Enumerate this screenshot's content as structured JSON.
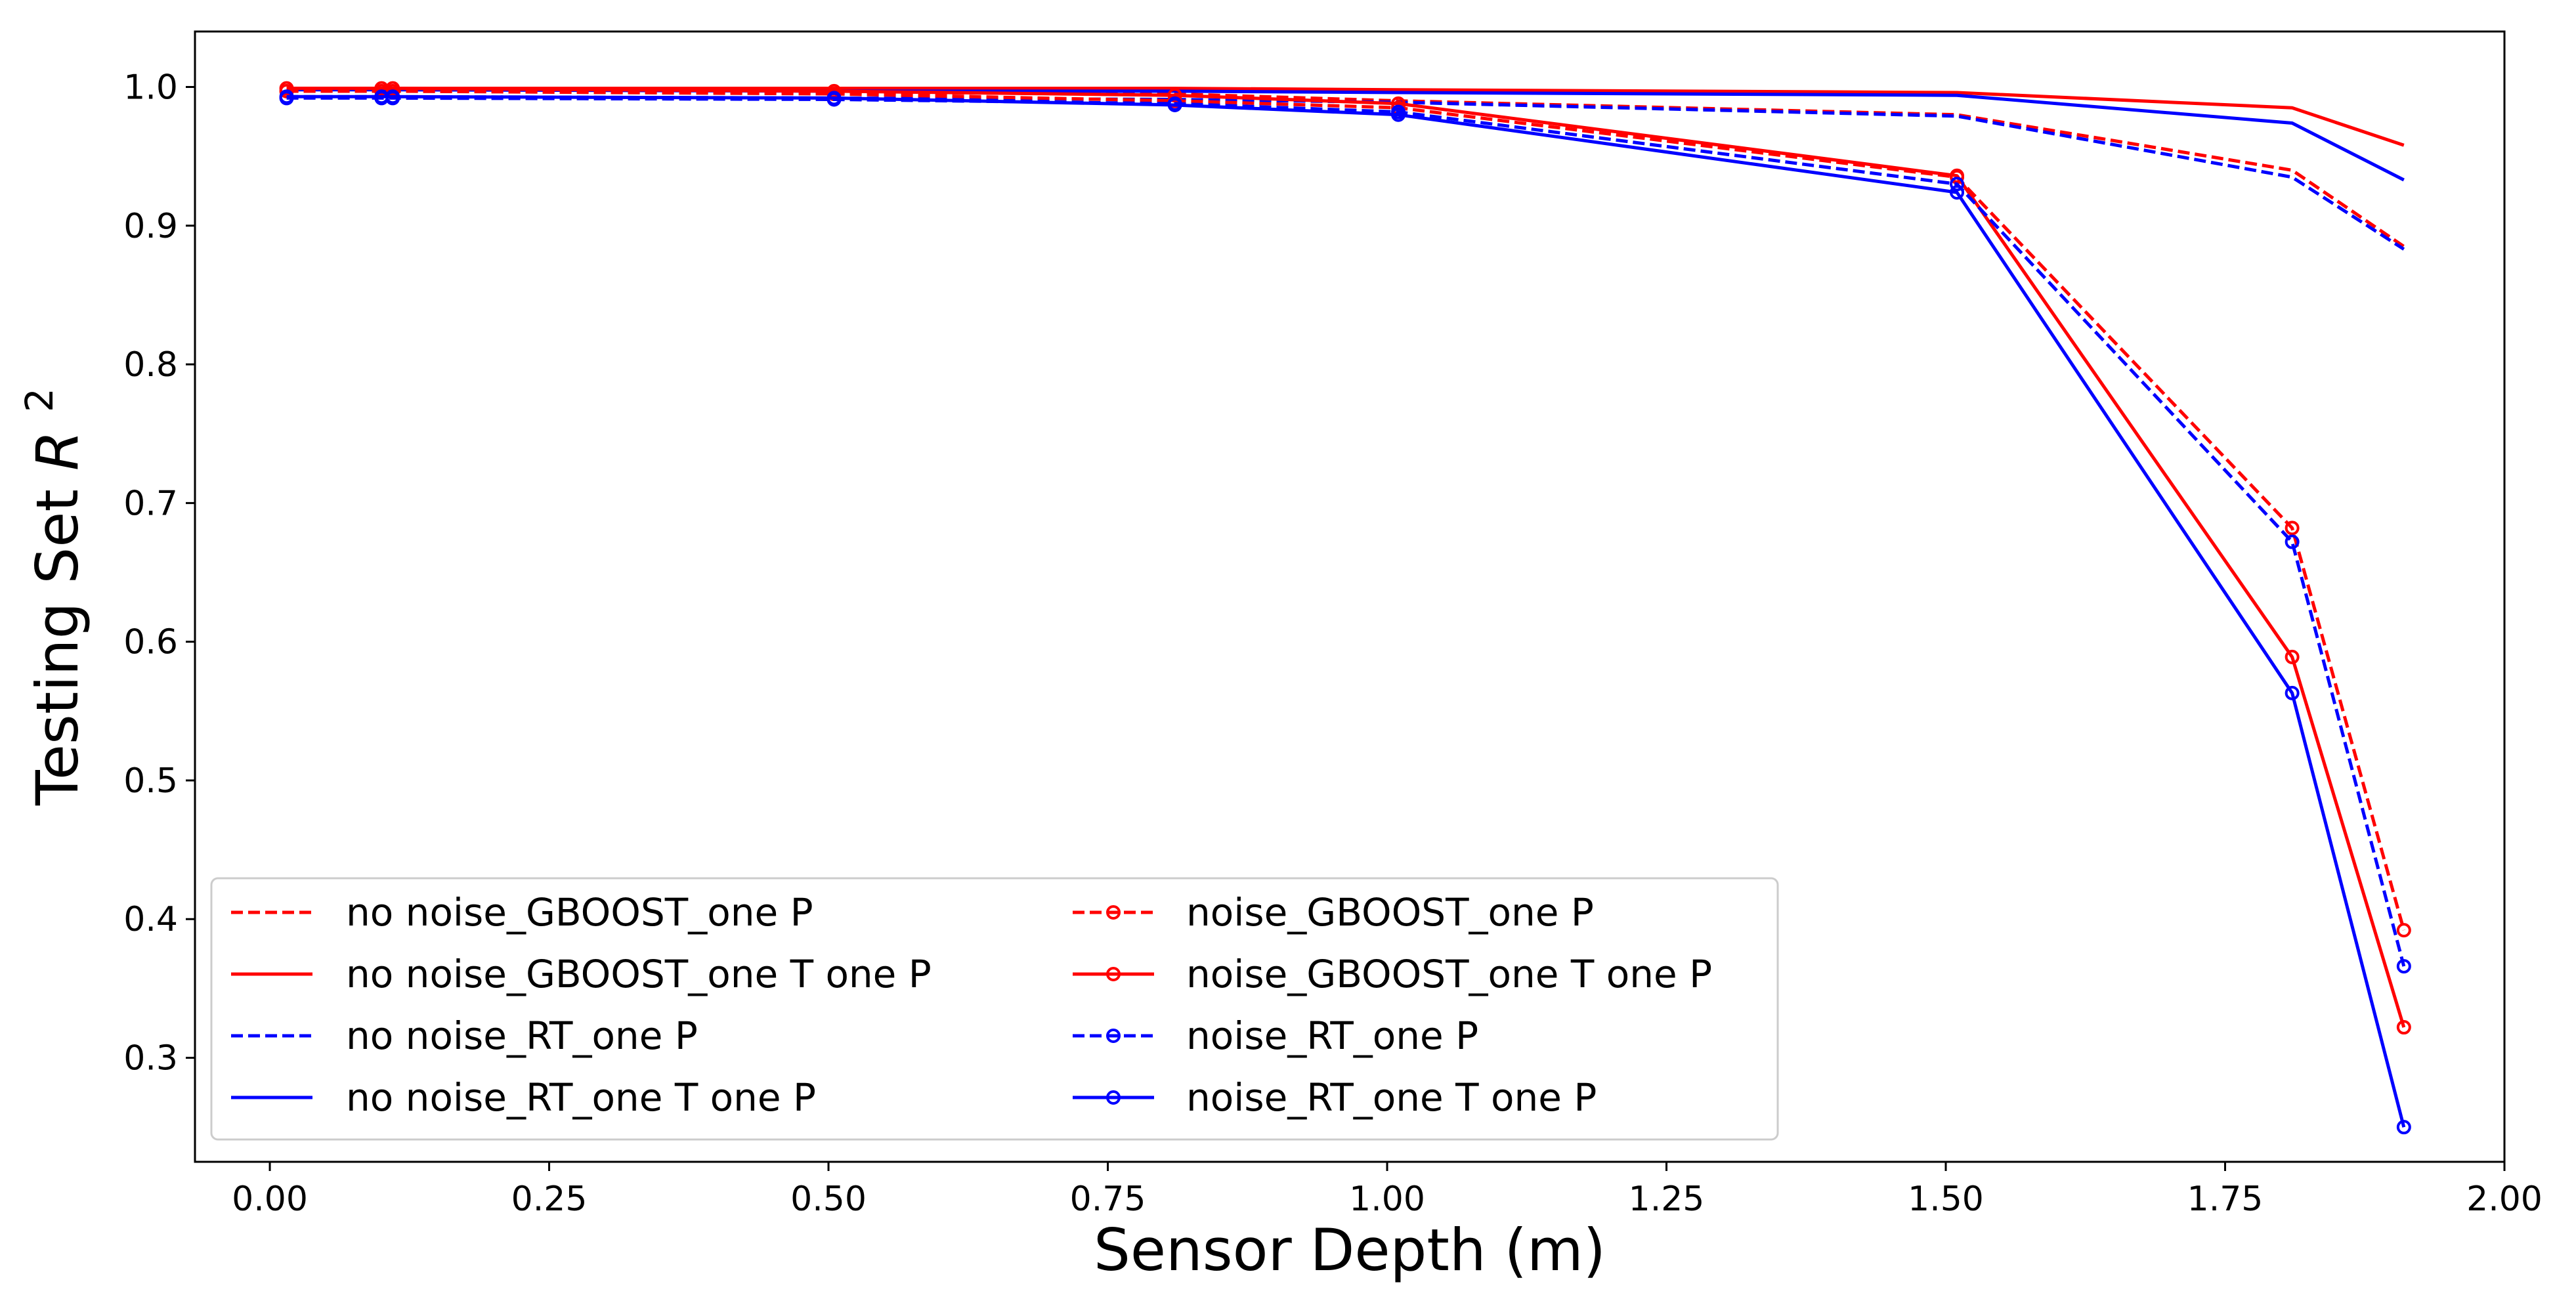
{
  "chart_data": {
    "type": "line",
    "title": "",
    "xlabel": "Sensor Depth (m)",
    "ylabel_prefix": "Testing Set ",
    "ylabel_var": "R",
    "ylabel_sup": "2",
    "xlim": [
      -0.067,
      2.0
    ],
    "ylim": [
      0.225,
      1.04
    ],
    "xticks": [
      0.0,
      0.25,
      0.5,
      0.75,
      1.0,
      1.25,
      1.5,
      1.75,
      2.0
    ],
    "xtick_labels": [
      "0.00",
      "0.25",
      "0.50",
      "0.75",
      "1.00",
      "1.25",
      "1.50",
      "1.75",
      "2.00"
    ],
    "yticks": [
      0.3,
      0.4,
      0.5,
      0.6,
      0.7,
      0.8,
      0.9,
      1.0
    ],
    "ytick_labels": [
      "0.3",
      "0.4",
      "0.5",
      "0.6",
      "0.7",
      "0.8",
      "0.9",
      "1.0"
    ],
    "grid": false,
    "legend_position": "lower-left",
    "x": [
      0.015,
      0.1,
      0.11,
      0.505,
      0.81,
      1.01,
      1.51,
      1.81,
      1.91
    ],
    "series": [
      {
        "name": "no noise_GBOOST_one P",
        "color": "#ff0000",
        "dashed": true,
        "markers": false,
        "values": [
          0.997,
          0.997,
          0.997,
          0.996,
          0.995,
          0.99,
          0.98,
          0.94,
          0.885
        ]
      },
      {
        "name": "no noise_GBOOST_one T one P",
        "color": "#ff0000",
        "dashed": false,
        "markers": false,
        "values": [
          0.999,
          0.999,
          0.999,
          0.999,
          0.999,
          0.998,
          0.996,
          0.985,
          0.958
        ]
      },
      {
        "name": "no noise_RT_one P",
        "color": "#0000ff",
        "dashed": true,
        "markers": false,
        "values": [
          0.993,
          0.993,
          0.993,
          0.992,
          0.991,
          0.989,
          0.979,
          0.935,
          0.883
        ]
      },
      {
        "name": "no noise_RT_one T one P",
        "color": "#0000ff",
        "dashed": false,
        "markers": false,
        "values": [
          0.998,
          0.998,
          0.998,
          0.997,
          0.997,
          0.996,
          0.994,
          0.974,
          0.933
        ]
      },
      {
        "name": "noise_GBOOST_one P",
        "color": "#ff0000",
        "dashed": true,
        "markers": true,
        "values": [
          0.997,
          0.997,
          0.997,
          0.995,
          0.99,
          0.985,
          0.935,
          0.682,
          0.392
        ]
      },
      {
        "name": "noise_GBOOST_one T one P",
        "color": "#ff0000",
        "dashed": false,
        "markers": true,
        "values": [
          0.999,
          0.999,
          0.999,
          0.997,
          0.994,
          0.988,
          0.936,
          0.589,
          0.322
        ]
      },
      {
        "name": "noise_RT_one P",
        "color": "#0000ff",
        "dashed": true,
        "markers": true,
        "values": [
          0.992,
          0.992,
          0.992,
          0.991,
          0.988,
          0.982,
          0.93,
          0.672,
          0.366
        ]
      },
      {
        "name": "noise_RT_one T one P",
        "color": "#0000ff",
        "dashed": false,
        "markers": true,
        "values": [
          0.993,
          0.993,
          0.993,
          0.992,
          0.987,
          0.98,
          0.924,
          0.563,
          0.25
        ]
      }
    ]
  }
}
